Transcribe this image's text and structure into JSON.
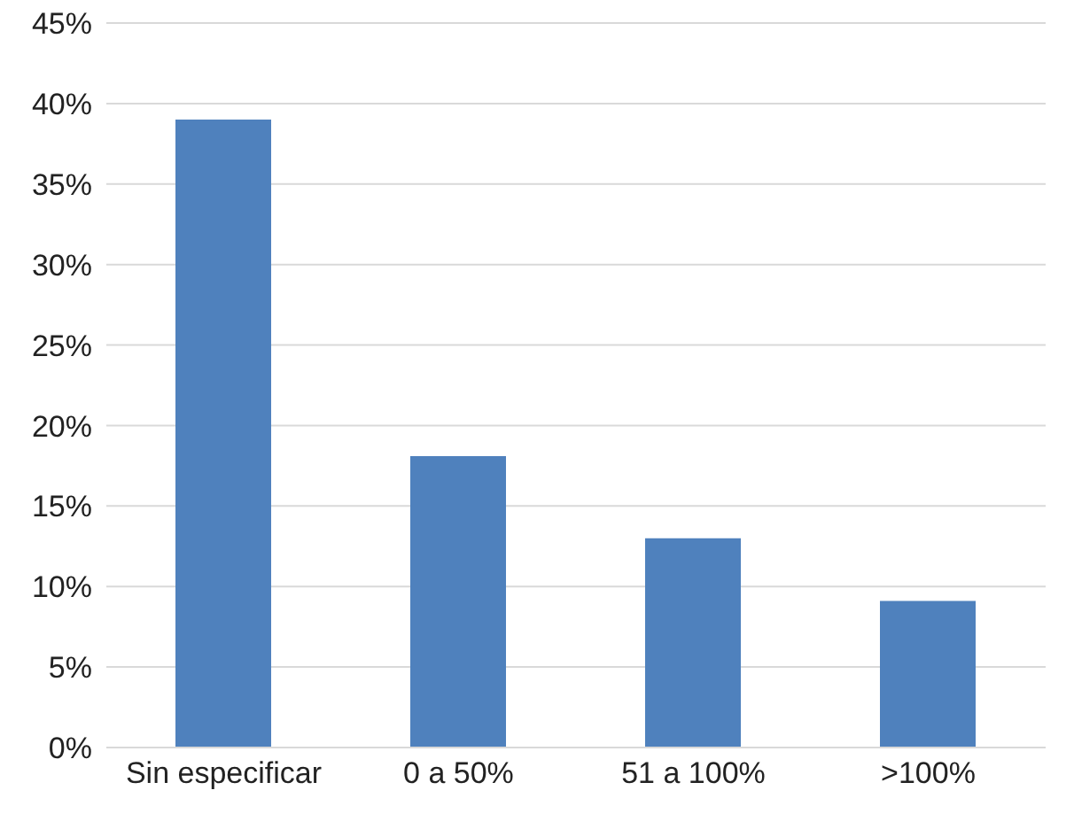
{
  "chart_data": {
    "type": "bar",
    "categories": [
      "Sin especificar",
      "0 a 50%",
      "51 a 100%",
      ">100%"
    ],
    "values": [
      39,
      18.1,
      13,
      9.1
    ],
    "color": "#4f81bd",
    "ylim": [
      0,
      45
    ],
    "yticks": [
      {
        "value": 0,
        "label": "0%"
      },
      {
        "value": 5,
        "label": "5%"
      },
      {
        "value": 10,
        "label": "10%"
      },
      {
        "value": 15,
        "label": "15%"
      },
      {
        "value": 20,
        "label": "20%"
      },
      {
        "value": 25,
        "label": "25%"
      },
      {
        "value": 30,
        "label": "30%"
      },
      {
        "value": 35,
        "label": "35%"
      },
      {
        "value": 40,
        "label": "40%"
      },
      {
        "value": 45,
        "label": "45%"
      }
    ],
    "grid": "y"
  }
}
